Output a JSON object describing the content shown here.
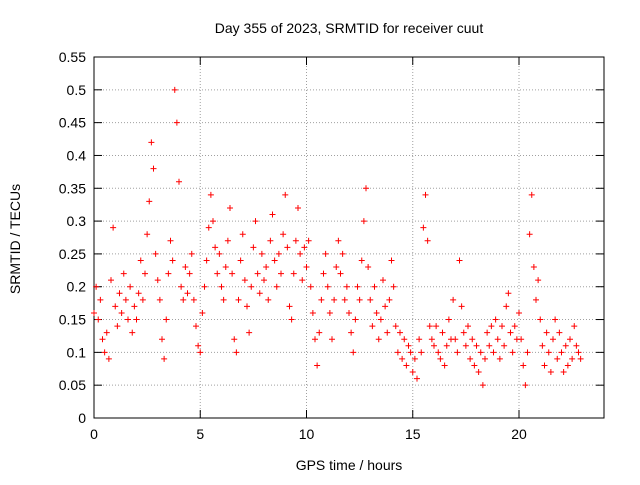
{
  "chart_data": {
    "type": "scatter",
    "title": "Day 355 of 2023, SRMTID for receiver cuut",
    "xlabel": "GPS time / hours",
    "ylabel": "SRMTID / TECUs",
    "xlim": [
      0,
      24
    ],
    "ylim": [
      0,
      0.55
    ],
    "x_ticks": [
      {
        "value": 0,
        "label": "0"
      },
      {
        "value": 5,
        "label": "5"
      },
      {
        "value": 10,
        "label": "10"
      },
      {
        "value": 15,
        "label": "15"
      },
      {
        "value": 20,
        "label": "20"
      }
    ],
    "y_ticks": [
      {
        "value": 0,
        "label": "0"
      },
      {
        "value": 0.05,
        "label": "0.05"
      },
      {
        "value": 0.1,
        "label": "0.1"
      },
      {
        "value": 0.15,
        "label": "0.15"
      },
      {
        "value": 0.2,
        "label": "0.2"
      },
      {
        "value": 0.25,
        "label": "0.25"
      },
      {
        "value": 0.3,
        "label": "0.3"
      },
      {
        "value": 0.35,
        "label": "0.35"
      },
      {
        "value": 0.4,
        "label": "0.4"
      },
      {
        "value": 0.45,
        "label": "0.45"
      },
      {
        "value": 0.5,
        "label": "0.5"
      },
      {
        "value": 0.55,
        "label": "0.55"
      }
    ],
    "grid": true,
    "marker": "plus",
    "series": [
      {
        "name": "SRMTID",
        "color": "#ff0000",
        "points": [
          [
            0.0,
            0.16
          ],
          [
            0.1,
            0.2
          ],
          [
            0.2,
            0.15
          ],
          [
            0.3,
            0.18
          ],
          [
            0.4,
            0.12
          ],
          [
            0.5,
            0.1
          ],
          [
            0.6,
            0.13
          ],
          [
            0.7,
            0.09
          ],
          [
            0.8,
            0.21
          ],
          [
            0.9,
            0.29
          ],
          [
            1.0,
            0.17
          ],
          [
            1.1,
            0.14
          ],
          [
            1.2,
            0.19
          ],
          [
            1.3,
            0.16
          ],
          [
            1.4,
            0.22
          ],
          [
            1.5,
            0.18
          ],
          [
            1.6,
            0.15
          ],
          [
            1.7,
            0.2
          ],
          [
            1.8,
            0.13
          ],
          [
            1.9,
            0.17
          ],
          [
            2.0,
            0.15
          ],
          [
            2.1,
            0.19
          ],
          [
            2.2,
            0.24
          ],
          [
            2.3,
            0.18
          ],
          [
            2.4,
            0.22
          ],
          [
            2.5,
            0.28
          ],
          [
            2.6,
            0.33
          ],
          [
            2.7,
            0.42
          ],
          [
            2.8,
            0.38
          ],
          [
            2.9,
            0.25
          ],
          [
            3.0,
            0.21
          ],
          [
            3.1,
            0.18
          ],
          [
            3.2,
            0.12
          ],
          [
            3.3,
            0.09
          ],
          [
            3.4,
            0.15
          ],
          [
            3.5,
            0.22
          ],
          [
            3.6,
            0.27
          ],
          [
            3.7,
            0.24
          ],
          [
            3.8,
            0.5
          ],
          [
            3.9,
            0.45
          ],
          [
            4.0,
            0.36
          ],
          [
            4.1,
            0.2
          ],
          [
            4.2,
            0.18
          ],
          [
            4.3,
            0.23
          ],
          [
            4.4,
            0.19
          ],
          [
            4.5,
            0.22
          ],
          [
            4.6,
            0.25
          ],
          [
            4.7,
            0.18
          ],
          [
            4.8,
            0.14
          ],
          [
            4.9,
            0.11
          ],
          [
            5.0,
            0.1
          ],
          [
            5.1,
            0.16
          ],
          [
            5.2,
            0.2
          ],
          [
            5.3,
            0.24
          ],
          [
            5.4,
            0.29
          ],
          [
            5.5,
            0.34
          ],
          [
            5.6,
            0.3
          ],
          [
            5.7,
            0.26
          ],
          [
            5.8,
            0.22
          ],
          [
            5.9,
            0.25
          ],
          [
            6.0,
            0.2
          ],
          [
            6.1,
            0.18
          ],
          [
            6.2,
            0.23
          ],
          [
            6.3,
            0.27
          ],
          [
            6.4,
            0.32
          ],
          [
            6.5,
            0.22
          ],
          [
            6.6,
            0.12
          ],
          [
            6.7,
            0.1
          ],
          [
            6.8,
            0.18
          ],
          [
            6.9,
            0.24
          ],
          [
            7.0,
            0.28
          ],
          [
            7.1,
            0.21
          ],
          [
            7.2,
            0.17
          ],
          [
            7.3,
            0.13
          ],
          [
            7.4,
            0.2
          ],
          [
            7.5,
            0.26
          ],
          [
            7.6,
            0.3
          ],
          [
            7.7,
            0.22
          ],
          [
            7.8,
            0.19
          ],
          [
            7.9,
            0.25
          ],
          [
            8.0,
            0.21
          ],
          [
            8.1,
            0.23
          ],
          [
            8.2,
            0.18
          ],
          [
            8.3,
            0.27
          ],
          [
            8.4,
            0.31
          ],
          [
            8.5,
            0.24
          ],
          [
            8.6,
            0.2
          ],
          [
            8.7,
            0.25
          ],
          [
            8.8,
            0.22
          ],
          [
            8.9,
            0.28
          ],
          [
            9.0,
            0.34
          ],
          [
            9.1,
            0.26
          ],
          [
            9.2,
            0.17
          ],
          [
            9.3,
            0.15
          ],
          [
            9.4,
            0.22
          ],
          [
            9.5,
            0.27
          ],
          [
            9.6,
            0.32
          ],
          [
            9.7,
            0.25
          ],
          [
            9.8,
            0.21
          ],
          [
            9.9,
            0.26
          ],
          [
            10.0,
            0.23
          ],
          [
            10.1,
            0.27
          ],
          [
            10.2,
            0.2
          ],
          [
            10.3,
            0.16
          ],
          [
            10.4,
            0.12
          ],
          [
            10.5,
            0.08
          ],
          [
            10.6,
            0.13
          ],
          [
            10.7,
            0.18
          ],
          [
            10.8,
            0.22
          ],
          [
            10.9,
            0.25
          ],
          [
            11.0,
            0.2
          ],
          [
            11.1,
            0.16
          ],
          [
            11.2,
            0.12
          ],
          [
            11.3,
            0.18
          ],
          [
            11.4,
            0.23
          ],
          [
            11.5,
            0.27
          ],
          [
            11.6,
            0.22
          ],
          [
            11.7,
            0.25
          ],
          [
            11.8,
            0.18
          ],
          [
            11.9,
            0.2
          ],
          [
            12.0,
            0.16
          ],
          [
            12.1,
            0.13
          ],
          [
            12.2,
            0.1
          ],
          [
            12.3,
            0.15
          ],
          [
            12.4,
            0.2
          ],
          [
            12.5,
            0.18
          ],
          [
            12.6,
            0.24
          ],
          [
            12.7,
            0.3
          ],
          [
            12.8,
            0.35
          ],
          [
            12.9,
            0.23
          ],
          [
            13.0,
            0.18
          ],
          [
            13.1,
            0.14
          ],
          [
            13.2,
            0.2
          ],
          [
            13.3,
            0.16
          ],
          [
            13.4,
            0.12
          ],
          [
            13.5,
            0.15
          ],
          [
            13.6,
            0.21
          ],
          [
            13.7,
            0.17
          ],
          [
            13.8,
            0.13
          ],
          [
            13.9,
            0.18
          ],
          [
            14.0,
            0.24
          ],
          [
            14.1,
            0.2
          ],
          [
            14.2,
            0.14
          ],
          [
            14.3,
            0.1
          ],
          [
            14.4,
            0.13
          ],
          [
            14.5,
            0.09
          ],
          [
            14.6,
            0.12
          ],
          [
            14.7,
            0.08
          ],
          [
            14.8,
            0.11
          ],
          [
            14.9,
            0.1
          ],
          [
            15.0,
            0.07
          ],
          [
            15.1,
            0.09
          ],
          [
            15.2,
            0.06
          ],
          [
            15.3,
            0.12
          ],
          [
            15.4,
            0.1
          ],
          [
            15.5,
            0.29
          ],
          [
            15.6,
            0.34
          ],
          [
            15.7,
            0.27
          ],
          [
            15.8,
            0.14
          ],
          [
            15.9,
            0.12
          ],
          [
            16.0,
            0.11
          ],
          [
            16.1,
            0.14
          ],
          [
            16.2,
            0.1
          ],
          [
            16.3,
            0.09
          ],
          [
            16.4,
            0.13
          ],
          [
            16.5,
            0.08
          ],
          [
            16.6,
            0.11
          ],
          [
            16.7,
            0.15
          ],
          [
            16.8,
            0.12
          ],
          [
            16.9,
            0.18
          ],
          [
            17.0,
            0.12
          ],
          [
            17.1,
            0.1
          ],
          [
            17.2,
            0.24
          ],
          [
            17.3,
            0.17
          ],
          [
            17.4,
            0.13
          ],
          [
            17.5,
            0.11
          ],
          [
            17.6,
            0.14
          ],
          [
            17.7,
            0.09
          ],
          [
            17.8,
            0.12
          ],
          [
            17.9,
            0.08
          ],
          [
            18.0,
            0.11
          ],
          [
            18.1,
            0.07
          ],
          [
            18.2,
            0.1
          ],
          [
            18.3,
            0.05
          ],
          [
            18.4,
            0.09
          ],
          [
            18.5,
            0.13
          ],
          [
            18.6,
            0.11
          ],
          [
            18.7,
            0.14
          ],
          [
            18.8,
            0.1
          ],
          [
            18.9,
            0.15
          ],
          [
            19.0,
            0.12
          ],
          [
            19.1,
            0.09
          ],
          [
            19.2,
            0.14
          ],
          [
            19.3,
            0.11
          ],
          [
            19.4,
            0.17
          ],
          [
            19.5,
            0.19
          ],
          [
            19.6,
            0.13
          ],
          [
            19.7,
            0.1
          ],
          [
            19.8,
            0.14
          ],
          [
            19.9,
            0.12
          ],
          [
            20.0,
            0.16
          ],
          [
            20.1,
            0.12
          ],
          [
            20.2,
            0.08
          ],
          [
            20.3,
            0.05
          ],
          [
            20.4,
            0.1
          ],
          [
            20.5,
            0.28
          ],
          [
            20.6,
            0.34
          ],
          [
            20.7,
            0.23
          ],
          [
            20.8,
            0.18
          ],
          [
            20.9,
            0.21
          ],
          [
            21.0,
            0.15
          ],
          [
            21.1,
            0.11
          ],
          [
            21.2,
            0.08
          ],
          [
            21.3,
            0.13
          ],
          [
            21.4,
            0.1
          ],
          [
            21.5,
            0.07
          ],
          [
            21.6,
            0.12
          ],
          [
            21.7,
            0.15
          ],
          [
            21.8,
            0.09
          ],
          [
            21.9,
            0.13
          ],
          [
            22.0,
            0.1
          ],
          [
            22.1,
            0.07
          ],
          [
            22.2,
            0.11
          ],
          [
            22.3,
            0.08
          ],
          [
            22.4,
            0.12
          ],
          [
            22.5,
            0.09
          ],
          [
            22.6,
            0.14
          ],
          [
            22.7,
            0.11
          ],
          [
            22.8,
            0.1
          ],
          [
            22.9,
            0.09
          ]
        ]
      }
    ]
  }
}
